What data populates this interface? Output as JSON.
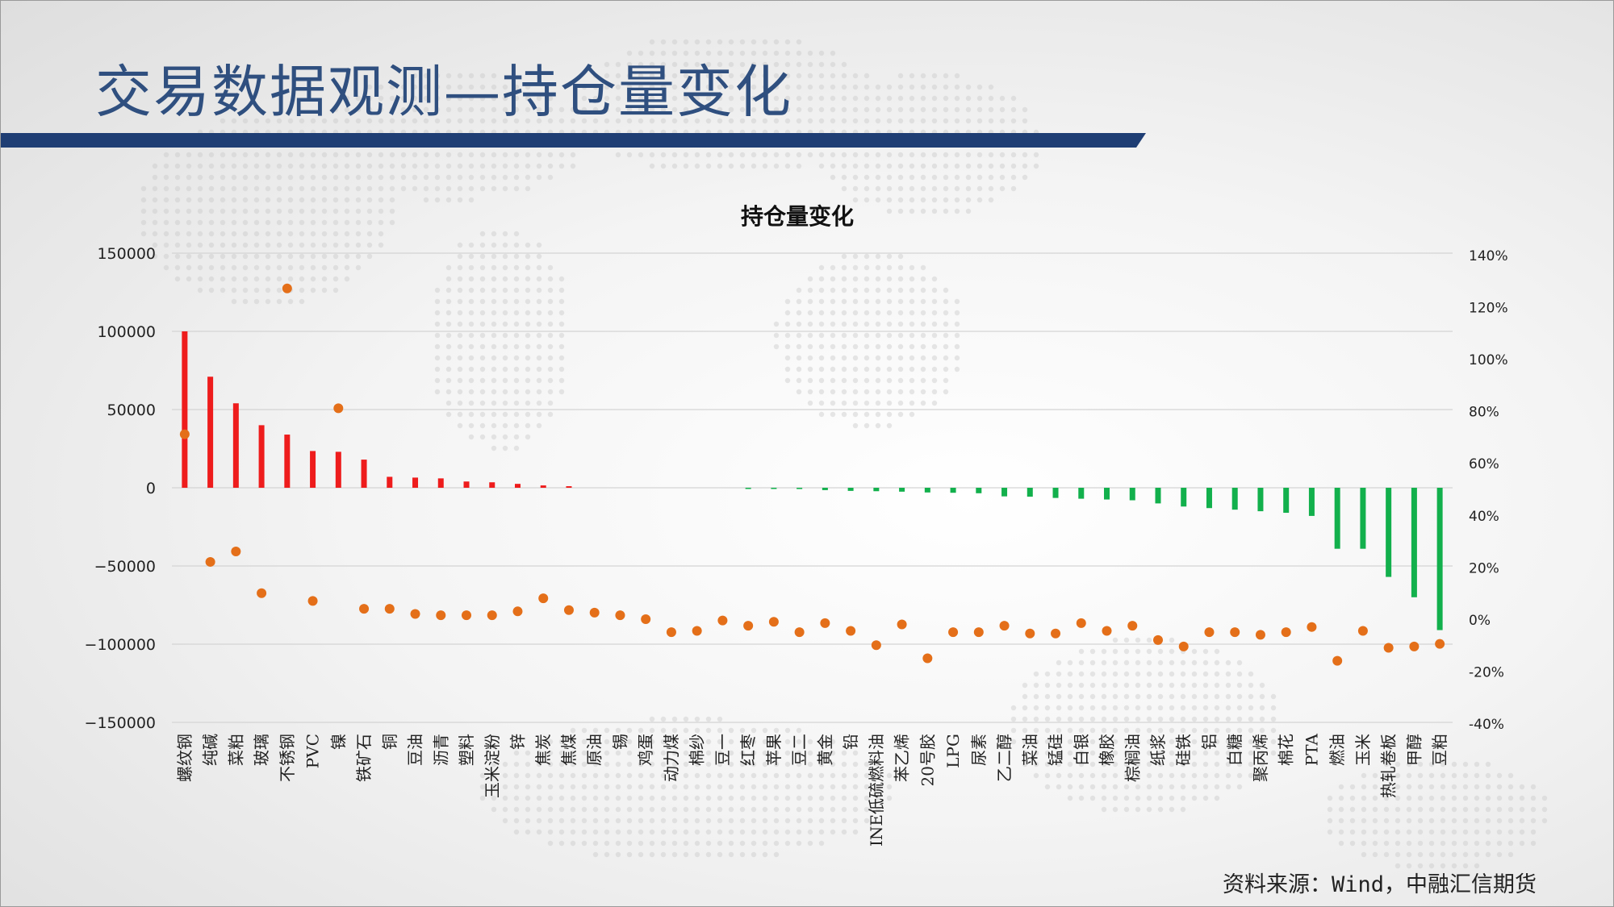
{
  "slide": {
    "title": "交易数据观测—持仓量变化",
    "source": "资料来源：Wind，中融汇信期货"
  },
  "colors": {
    "title": "#2f4f7f",
    "title_bar": "#1f3e74",
    "bar_positive": "#ee1c1c",
    "bar_negative": "#12b04c",
    "dot": "#e46f19",
    "grid": "#d4d4d4"
  },
  "chart_data": {
    "type": "bar",
    "title": "持仓量变化",
    "categories": [
      "螺纹钢",
      "纯碱",
      "菜粕",
      "玻璃",
      "不锈钢",
      "PVC",
      "镍",
      "铁矿石",
      "铜",
      "豆油",
      "沥青",
      "塑料",
      "玉米淀粉",
      "锌",
      "焦炭",
      "焦煤",
      "原油",
      "锡",
      "鸡蛋",
      "动力煤",
      "棉纱",
      "豆一",
      "红枣",
      "苹果",
      "豆二",
      "黄金",
      "铅",
      "INE低硫燃料油",
      "苯乙烯",
      "20号胶",
      "LPG",
      "尿素",
      "乙二醇",
      "菜油",
      "锰硅",
      "白银",
      "橡胶",
      "棕榈油",
      "纸浆",
      "硅铁",
      "铝",
      "白糖",
      "聚丙烯",
      "棉花",
      "PTA",
      "燃油",
      "玉米",
      "热轧卷板",
      "甲醇",
      "豆粕"
    ],
    "series": [
      {
        "axis": "left",
        "kind": "bar",
        "values": [
          100000,
          71000,
          54000,
          40000,
          34000,
          23500,
          23000,
          18000,
          7000,
          6500,
          6000,
          4000,
          3500,
          2500,
          1500,
          1000,
          0,
          0,
          0,
          0,
          0,
          0,
          -500,
          -600,
          -800,
          -1500,
          -2000,
          -2200,
          -2500,
          -3000,
          -3200,
          -3500,
          -5500,
          -5700,
          -6500,
          -7000,
          -7500,
          -8000,
          -10000,
          -12000,
          -13000,
          -14000,
          -15000,
          -16000,
          -18000,
          -39000,
          -39000,
          -57000,
          -70000,
          -91000
        ]
      },
      {
        "axis": "right",
        "kind": "scatter",
        "unit": "%",
        "values": [
          71,
          22,
          26,
          10,
          127,
          7,
          81,
          4,
          4,
          2,
          1.5,
          1.5,
          1.5,
          3,
          8,
          3.5,
          2.5,
          1.5,
          0,
          -5,
          -4.5,
          -0.5,
          -2.5,
          -1,
          -5,
          -1.5,
          -4.5,
          -10,
          -2,
          -15,
          -5,
          -5,
          -2.5,
          -5.5,
          -5.5,
          -1.5,
          -4.5,
          -2.5,
          -8,
          -10.5,
          -5,
          -5,
          -6,
          -5,
          -3,
          -16,
          -4.5,
          -11,
          -10.5,
          -9.5
        ]
      }
    ],
    "y_left": {
      "min": -150000,
      "max": 150000,
      "ticks": [
        "150000",
        "100000",
        "50000",
        "0",
        "−50000",
        "−100000",
        "−150000"
      ]
    },
    "y_right": {
      "min": -40,
      "max": 140,
      "ticks": [
        "140%",
        "120%",
        "100%",
        "80%",
        "60%",
        "40%",
        "20%",
        "0%",
        "-20%",
        "-40%"
      ]
    },
    "grid": true,
    "legend": "none"
  }
}
